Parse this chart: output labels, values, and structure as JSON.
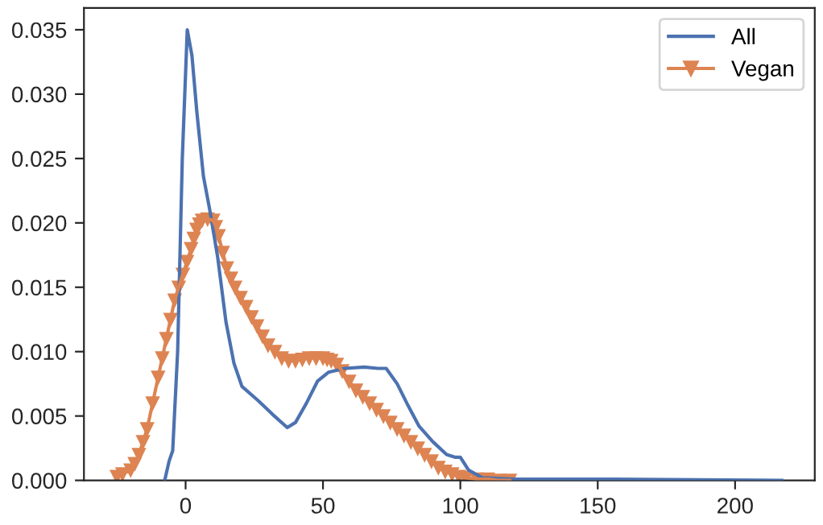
{
  "chart_data": {
    "type": "line",
    "xlim": [
      -37,
      229
    ],
    "ylim": [
      0,
      0.0367
    ],
    "xticks": [
      0,
      50,
      100,
      150,
      200
    ],
    "yticks": [
      {
        "value": 0,
        "label": "0.000"
      },
      {
        "value": 0.005,
        "label": "0.005"
      },
      {
        "value": 0.01,
        "label": "0.010"
      },
      {
        "value": 0.015,
        "label": "0.015"
      },
      {
        "value": 0.02,
        "label": "0.020"
      },
      {
        "value": 0.025,
        "label": "0.025"
      },
      {
        "value": 0.03,
        "label": "0.030"
      },
      {
        "value": 0.035,
        "label": "0.035"
      }
    ],
    "grid": false,
    "legend": "top right",
    "series": [
      {
        "name": "All",
        "color": "#4c72b0",
        "marker": "none",
        "x": [
          -7.6,
          -6,
          -4.7,
          -2.9,
          -1.2,
          0.6,
          2.3,
          4.1,
          6.5,
          8.8,
          11.7,
          14.7,
          17.6,
          20.5,
          26.4,
          32.3,
          37,
          40,
          44,
          48,
          52,
          58,
          65,
          70,
          73,
          77,
          81,
          85,
          90,
          95,
          98,
          100,
          103,
          108,
          120,
          150,
          217
        ],
        "values": [
          0,
          0.0015,
          0.0023,
          0.01,
          0.025,
          0.035,
          0.033,
          0.0286,
          0.0236,
          0.021,
          0.0173,
          0.0123,
          0.0091,
          0.0073,
          0.0062,
          0.005,
          0.0041,
          0.0045,
          0.006,
          0.0077,
          0.0084,
          0.0087,
          0.0088,
          0.0087,
          0.0087,
          0.0075,
          0.0058,
          0.0042,
          0.003,
          0.002,
          0.0018,
          0.0018,
          0.0008,
          0.0002,
          0.0001,
          0.0001,
          0
        ]
      },
      {
        "name": "Vegan",
        "color": "#dd8452",
        "marker": "triangle",
        "x": [
          -25,
          -23,
          -20,
          -18.5,
          -17,
          -15.5,
          -14,
          -12,
          -10,
          -8.5,
          -7,
          -5.5,
          -4,
          -2.5,
          -1,
          0.5,
          2,
          3,
          4,
          5,
          6,
          8,
          10,
          11,
          12,
          13.5,
          15,
          16.5,
          18,
          20,
          22,
          24,
          26,
          28,
          30,
          32.5,
          35,
          37.5,
          40,
          42.5,
          45,
          47.5,
          50,
          51.5,
          53,
          55,
          57,
          59.5,
          62,
          64.5,
          67,
          69.5,
          72,
          74.5,
          77,
          79.5,
          82,
          84.5,
          87,
          89.5,
          92,
          94.5,
          97,
          99.5,
          102,
          106,
          110,
          114,
          118
        ],
        "values": [
          0.0003,
          0.0005,
          0.0008,
          0.0013,
          0.002,
          0.003,
          0.004,
          0.006,
          0.008,
          0.0095,
          0.011,
          0.0125,
          0.014,
          0.015,
          0.016,
          0.017,
          0.018,
          0.0188,
          0.0195,
          0.0199,
          0.0202,
          0.0203,
          0.0202,
          0.0197,
          0.019,
          0.0177,
          0.0165,
          0.0157,
          0.015,
          0.0142,
          0.0135,
          0.0127,
          0.012,
          0.0112,
          0.0105,
          0.01,
          0.0095,
          0.0093,
          0.0093,
          0.0094,
          0.0095,
          0.0095,
          0.0095,
          0.0094,
          0.0093,
          0.009,
          0.0085,
          0.0077,
          0.007,
          0.0065,
          0.006,
          0.0055,
          0.005,
          0.0045,
          0.004,
          0.0035,
          0.003,
          0.0025,
          0.002,
          0.0015,
          0.001,
          0.0007,
          0.0005,
          0.0003,
          0.0002,
          0.0001,
          0.0001,
          0,
          0
        ]
      }
    ]
  }
}
